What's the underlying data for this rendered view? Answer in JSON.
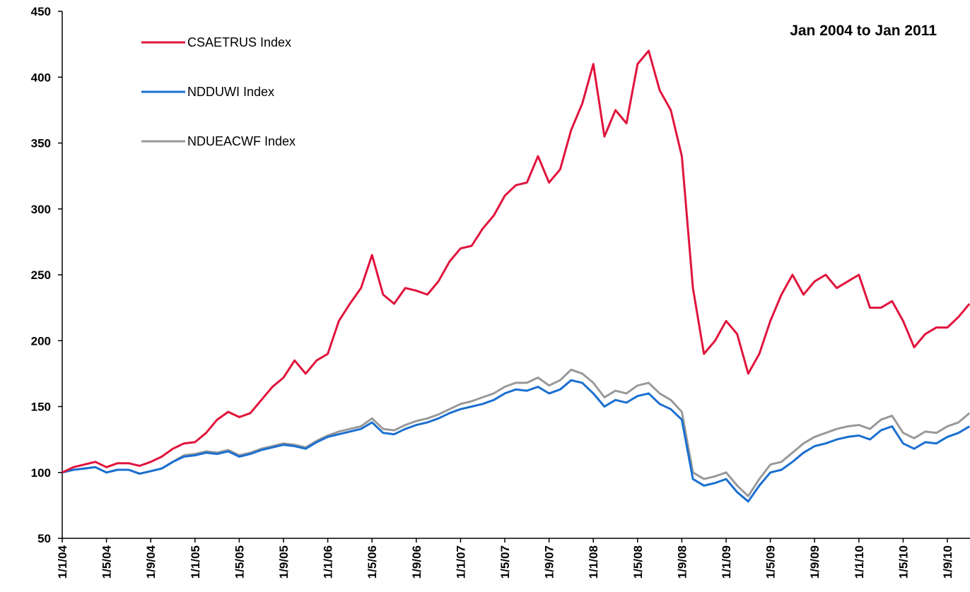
{
  "chart_data": {
    "type": "line",
    "annotation": "Jan 2004 to Jan 2011",
    "categories": [
      "1/1/04",
      null,
      null,
      null,
      "1/5/04",
      null,
      null,
      null,
      "1/9/04",
      null,
      null,
      null,
      "1/1/05",
      null,
      null,
      null,
      "1/5/05",
      null,
      null,
      null,
      "1/9/05",
      null,
      null,
      null,
      "1/1/06",
      null,
      null,
      null,
      "1/5/06",
      null,
      null,
      null,
      "1/9/06",
      null,
      null,
      null,
      "1/1/07",
      null,
      null,
      null,
      "1/5/07",
      null,
      null,
      null,
      "1/9/07",
      null,
      null,
      null,
      "1/1/08",
      null,
      null,
      null,
      "1/5/08",
      null,
      null,
      null,
      "1/9/08",
      null,
      null,
      null,
      "1/1/09",
      null,
      null,
      null,
      "1/5/09",
      null,
      null,
      null,
      "1/9/09",
      null,
      null,
      null,
      "1/1/10",
      null,
      null,
      null,
      "1/5/10",
      null,
      null,
      null,
      "1/9/10",
      null,
      null
    ],
    "series": [
      {
        "name": "CSAETRUS Index",
        "color": "#e0143c",
        "values": [
          100,
          104,
          106,
          108,
          104,
          107,
          107,
          105,
          108,
          112,
          118,
          122,
          123,
          130,
          140,
          146,
          142,
          145,
          155,
          165,
          172,
          185,
          175,
          185,
          190,
          215,
          228,
          240,
          265,
          235,
          228,
          240,
          238,
          235,
          245,
          260,
          270,
          272,
          285,
          295,
          310,
          318,
          320,
          340,
          320,
          330,
          360,
          380,
          410,
          355,
          375,
          365,
          410,
          420,
          390,
          375,
          340,
          240,
          190,
          200,
          215,
          205,
          175,
          190,
          215,
          235,
          250,
          235,
          245,
          250,
          240,
          245,
          250,
          225,
          225,
          230,
          215,
          195,
          205,
          210,
          210,
          218,
          228
        ]
      },
      {
        "name": "NDDUWI Index",
        "color": "#1a6fd0",
        "values": [
          100,
          102,
          103,
          104,
          100,
          102,
          102,
          99,
          101,
          103,
          108,
          112,
          113,
          115,
          114,
          116,
          112,
          114,
          117,
          119,
          121,
          120,
          118,
          123,
          127,
          129,
          131,
          133,
          138,
          130,
          129,
          133,
          136,
          138,
          141,
          145,
          148,
          150,
          152,
          155,
          160,
          163,
          162,
          165,
          160,
          163,
          170,
          168,
          160,
          150,
          155,
          153,
          158,
          160,
          152,
          148,
          140,
          95,
          90,
          92,
          95,
          85,
          78,
          90,
          100,
          102,
          108,
          115,
          120,
          122,
          125,
          127,
          128,
          125,
          132,
          135,
          122,
          118,
          123,
          122,
          127,
          130,
          135
        ]
      },
      {
        "name": "NDUEACWF Index",
        "color": "#999999",
        "values": [
          100,
          102,
          103,
          104,
          100,
          102,
          102,
          99,
          101,
          103,
          108,
          113,
          114,
          116,
          115,
          117,
          113,
          115,
          118,
          120,
          122,
          121,
          119,
          124,
          128,
          131,
          133,
          135,
          141,
          133,
          132,
          136,
          139,
          141,
          144,
          148,
          152,
          154,
          157,
          160,
          165,
          168,
          168,
          172,
          166,
          170,
          178,
          175,
          168,
          157,
          162,
          160,
          166,
          168,
          160,
          155,
          146,
          100,
          95,
          97,
          100,
          90,
          82,
          95,
          106,
          108,
          115,
          122,
          127,
          130,
          133,
          135,
          136,
          133,
          140,
          143,
          130,
          126,
          131,
          130,
          135,
          138,
          145
        ]
      }
    ],
    "ylim": [
      50,
      450
    ],
    "yticks": [
      50,
      100,
      150,
      200,
      250,
      300,
      350,
      400,
      450
    ],
    "legend": "upper left"
  }
}
